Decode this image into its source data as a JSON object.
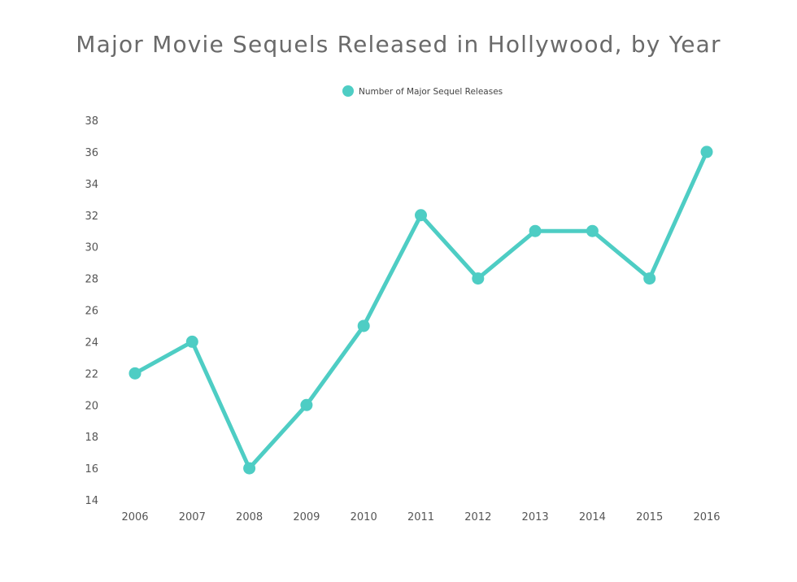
{
  "chart_data": {
    "type": "line",
    "title": "Major Movie Sequels Released in Hollywood, by Year",
    "xlabel": "",
    "ylabel": "",
    "categories": [
      "2006",
      "2007",
      "2008",
      "2009",
      "2010",
      "2011",
      "2012",
      "2013",
      "2014",
      "2015",
      "2016"
    ],
    "series": [
      {
        "name": "Number of Major Sequel Releases",
        "color": "#4ecdc4",
        "values": [
          22,
          24,
          16,
          20,
          25,
          32,
          28,
          31,
          31,
          28,
          36
        ]
      }
    ],
    "ylim": [
      14,
      38
    ],
    "yticks": [
      "14",
      "16",
      "18",
      "20",
      "22",
      "24",
      "26",
      "28",
      "30",
      "32",
      "34",
      "36",
      "38"
    ],
    "grid": false,
    "legend_position": "top-center"
  }
}
